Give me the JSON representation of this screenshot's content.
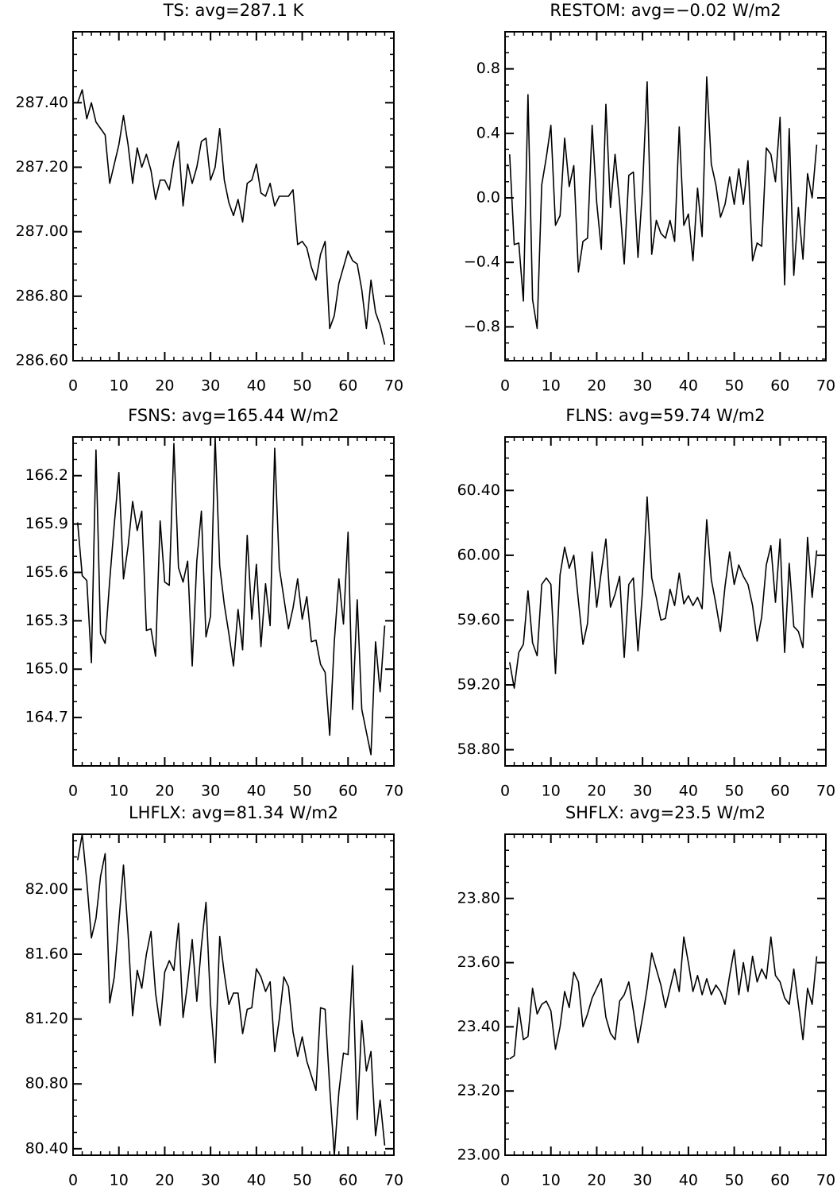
{
  "chart_data": [
    {
      "type": "line",
      "title": "TS: avg=287.1 K",
      "color": "#000000",
      "x": [
        1,
        2,
        3,
        4,
        5,
        6,
        7,
        8,
        9,
        10,
        11,
        12,
        13,
        14,
        15,
        16,
        17,
        18,
        19,
        20,
        21,
        22,
        23,
        24,
        25,
        26,
        27,
        28,
        29,
        30,
        31,
        32,
        33,
        34,
        35,
        36,
        37,
        38,
        39,
        40,
        41,
        42,
        43,
        44,
        45,
        46,
        47,
        48,
        49,
        50,
        51,
        52,
        53,
        54,
        55,
        56,
        57,
        58,
        59,
        60,
        61,
        62,
        63,
        64,
        65,
        66,
        67,
        68
      ],
      "values": [
        287.4,
        287.44,
        287.35,
        287.4,
        287.34,
        287.32,
        287.3,
        287.15,
        287.21,
        287.27,
        287.36,
        287.27,
        287.15,
        287.26,
        287.2,
        287.24,
        287.19,
        287.1,
        287.16,
        287.16,
        287.13,
        287.22,
        287.28,
        287.08,
        287.21,
        287.15,
        287.2,
        287.28,
        287.29,
        287.16,
        287.2,
        287.32,
        287.16,
        287.09,
        287.05,
        287.1,
        287.03,
        287.15,
        287.16,
        287.21,
        287.12,
        287.11,
        287.15,
        287.08,
        287.11,
        287.11,
        287.11,
        287.13,
        286.96,
        286.97,
        286.95,
        286.89,
        286.85,
        286.93,
        286.97,
        286.7,
        286.74,
        286.84,
        286.89,
        286.94,
        286.91,
        286.9,
        286.82,
        286.7,
        286.85,
        286.75,
        286.71,
        286.65
      ],
      "xlim": [
        0,
        70
      ],
      "xticks": [
        0,
        10,
        20,
        30,
        40,
        50,
        60,
        70
      ],
      "ylim": [
        286.6,
        287.62
      ],
      "yticks": [
        {
          "value": 286.6,
          "label": "286.60"
        },
        {
          "value": 286.8,
          "label": "286.80"
        },
        {
          "value": 287.0,
          "label": "287.00"
        },
        {
          "value": 287.2,
          "label": "287.20"
        },
        {
          "value": 287.4,
          "label": "287.40"
        }
      ]
    },
    {
      "type": "line",
      "title": "RESTOM: avg=−0.02 W/m2",
      "color": "#000000",
      "x": [
        1,
        2,
        3,
        4,
        5,
        6,
        7,
        8,
        9,
        10,
        11,
        12,
        13,
        14,
        15,
        16,
        17,
        18,
        19,
        20,
        21,
        22,
        23,
        24,
        25,
        26,
        27,
        28,
        29,
        30,
        31,
        32,
        33,
        34,
        35,
        36,
        37,
        38,
        39,
        40,
        41,
        42,
        43,
        44,
        45,
        46,
        47,
        48,
        49,
        50,
        51,
        52,
        53,
        54,
        55,
        56,
        57,
        58,
        59,
        60,
        61,
        62,
        63,
        64,
        65,
        66,
        67,
        68
      ],
      "values": [
        0.27,
        -0.29,
        -0.28,
        -0.64,
        0.64,
        -0.63,
        -0.81,
        0.08,
        0.25,
        0.45,
        -0.17,
        -0.11,
        0.37,
        0.07,
        0.2,
        -0.46,
        -0.27,
        -0.25,
        0.45,
        -0.03,
        -0.32,
        0.58,
        -0.06,
        0.27,
        -0.03,
        -0.41,
        0.14,
        0.16,
        -0.37,
        0.06,
        0.72,
        -0.35,
        -0.14,
        -0.22,
        -0.25,
        -0.14,
        -0.27,
        0.44,
        -0.17,
        -0.1,
        -0.39,
        0.06,
        -0.24,
        0.75,
        0.21,
        0.08,
        -0.12,
        -0.04,
        0.13,
        -0.04,
        0.18,
        -0.04,
        0.23,
        -0.39,
        -0.28,
        -0.3,
        0.31,
        0.27,
        0.1,
        0.5,
        -0.54,
        0.43,
        -0.48,
        -0.06,
        -0.38,
        0.15,
        0.0,
        0.33
      ],
      "xlim": [
        0,
        70
      ],
      "xticks": [
        0,
        10,
        20,
        30,
        40,
        50,
        60,
        70
      ],
      "ylim": [
        -1.01,
        1.03
      ],
      "yticks": [
        {
          "value": -0.8,
          "label": "−0.8"
        },
        {
          "value": -0.4,
          "label": "−0.4"
        },
        {
          "value": 0,
          "label": "0.0"
        },
        0.4,
        0.8
      ]
    },
    {
      "type": "line",
      "title": "FSNS: avg=165.44 W/m2",
      "color": "#000000",
      "x": [
        1,
        2,
        3,
        4,
        5,
        6,
        7,
        8,
        9,
        10,
        11,
        12,
        13,
        14,
        15,
        16,
        17,
        18,
        19,
        20,
        21,
        22,
        23,
        24,
        25,
        26,
        27,
        28,
        29,
        30,
        31,
        32,
        33,
        34,
        35,
        36,
        37,
        38,
        39,
        40,
        41,
        42,
        43,
        44,
        45,
        46,
        47,
        48,
        49,
        50,
        51,
        52,
        53,
        54,
        55,
        56,
        57,
        58,
        59,
        60,
        61,
        62,
        63,
        64,
        65,
        66,
        67,
        68
      ],
      "values": [
        165.91,
        165.58,
        165.55,
        165.04,
        166.36,
        165.22,
        165.16,
        165.55,
        165.9,
        166.22,
        165.56,
        165.76,
        166.04,
        165.86,
        165.98,
        165.24,
        165.25,
        165.08,
        165.92,
        165.54,
        165.52,
        166.4,
        165.63,
        165.54,
        165.67,
        165.02,
        165.67,
        165.98,
        165.2,
        165.33,
        166.44,
        165.64,
        165.4,
        165.22,
        165.02,
        165.37,
        165.12,
        165.83,
        165.31,
        165.65,
        165.14,
        165.53,
        165.27,
        166.37,
        165.63,
        165.44,
        165.25,
        165.38,
        165.56,
        165.31,
        165.45,
        165.17,
        165.18,
        165.03,
        164.98,
        164.59,
        165.17,
        165.56,
        165.28,
        165.85,
        164.75,
        165.43,
        164.75,
        164.61,
        164.47,
        165.17,
        164.86,
        165.27
      ],
      "xlim": [
        0,
        70
      ],
      "xticks": [
        0,
        10,
        20,
        30,
        40,
        50,
        60,
        70
      ],
      "ylim": [
        164.4,
        166.44
      ],
      "yticks": [
        164.7,
        {
          "value": 165.0,
          "label": "165.0"
        },
        165.3,
        165.6,
        165.9,
        166.2
      ]
    },
    {
      "type": "line",
      "title": "FLNS: avg=59.74 W/m2",
      "color": "#000000",
      "x": [
        1,
        2,
        3,
        4,
        5,
        6,
        7,
        8,
        9,
        10,
        11,
        12,
        13,
        14,
        15,
        16,
        17,
        18,
        19,
        20,
        21,
        22,
        23,
        24,
        25,
        26,
        27,
        28,
        29,
        30,
        31,
        32,
        33,
        34,
        35,
        36,
        37,
        38,
        39,
        40,
        41,
        42,
        43,
        44,
        45,
        46,
        47,
        48,
        49,
        50,
        51,
        52,
        53,
        54,
        55,
        56,
        57,
        58,
        59,
        60,
        61,
        62,
        63,
        64,
        65,
        66,
        67,
        68
      ],
      "values": [
        59.34,
        59.18,
        59.4,
        59.45,
        59.78,
        59.46,
        59.38,
        59.82,
        59.86,
        59.82,
        59.27,
        59.88,
        60.05,
        59.92,
        60.0,
        59.72,
        59.45,
        59.58,
        60.02,
        59.68,
        59.9,
        60.1,
        59.68,
        59.76,
        59.87,
        59.37,
        59.82,
        59.86,
        59.41,
        59.78,
        60.36,
        59.86,
        59.74,
        59.6,
        59.61,
        59.79,
        59.69,
        59.89,
        59.7,
        59.75,
        59.69,
        59.74,
        59.67,
        60.22,
        59.85,
        59.7,
        59.53,
        59.81,
        60.02,
        59.82,
        59.94,
        59.87,
        59.82,
        59.69,
        59.47,
        59.62,
        59.94,
        60.06,
        59.71,
        60.1,
        59.4,
        59.95,
        59.56,
        59.53,
        59.43,
        60.11,
        59.74,
        60.03
      ],
      "xlim": [
        0,
        70
      ],
      "xticks": [
        0,
        10,
        20,
        30,
        40,
        50,
        60,
        70
      ],
      "ylim": [
        58.7,
        60.73
      ],
      "yticks": [
        {
          "value": 58.8,
          "label": "58.80"
        },
        {
          "value": 59.2,
          "label": "59.20"
        },
        {
          "value": 59.6,
          "label": "59.60"
        },
        {
          "value": 60.0,
          "label": "60.00"
        },
        {
          "value": 60.4,
          "label": "60.40"
        }
      ]
    },
    {
      "type": "line",
      "title": "LHFLX: avg=81.34 W/m2",
      "color": "#000000",
      "x": [
        1,
        2,
        3,
        4,
        5,
        6,
        7,
        8,
        9,
        10,
        11,
        12,
        13,
        14,
        15,
        16,
        17,
        18,
        19,
        20,
        21,
        22,
        23,
        24,
        25,
        26,
        27,
        28,
        29,
        30,
        31,
        32,
        33,
        34,
        35,
        36,
        37,
        38,
        39,
        40,
        41,
        42,
        43,
        44,
        45,
        46,
        47,
        48,
        49,
        50,
        51,
        52,
        53,
        54,
        55,
        56,
        57,
        58,
        59,
        60,
        61,
        62,
        63,
        64,
        65,
        66,
        67,
        68
      ],
      "values": [
        82.18,
        82.34,
        82.05,
        81.7,
        81.82,
        82.08,
        82.22,
        81.3,
        81.46,
        81.8,
        82.15,
        81.73,
        81.22,
        81.5,
        81.39,
        81.6,
        81.74,
        81.36,
        81.16,
        81.49,
        81.56,
        81.5,
        81.79,
        81.21,
        81.42,
        81.69,
        81.31,
        81.65,
        81.92,
        81.29,
        80.93,
        81.71,
        81.48,
        81.29,
        81.36,
        81.36,
        81.11,
        81.26,
        81.27,
        81.51,
        81.46,
        81.37,
        81.43,
        81.0,
        81.2,
        81.46,
        81.4,
        81.12,
        80.97,
        81.09,
        80.94,
        80.85,
        80.76,
        81.27,
        81.26,
        80.78,
        80.36,
        80.75,
        80.99,
        80.98,
        81.53,
        80.58,
        81.19,
        80.88,
        81.0,
        80.48,
        80.7,
        80.42
      ],
      "xlim": [
        0,
        70
      ],
      "xticks": [
        0,
        10,
        20,
        30,
        40,
        50,
        60,
        70
      ],
      "ylim": [
        80.36,
        82.34
      ],
      "yticks": [
        {
          "value": 80.4,
          "label": "80.40"
        },
        {
          "value": 80.8,
          "label": "80.80"
        },
        {
          "value": 81.2,
          "label": "81.20"
        },
        {
          "value": 81.6,
          "label": "81.60"
        },
        {
          "value": 82.0,
          "label": "82.00"
        }
      ]
    },
    {
      "type": "line",
      "title": "SHFLX: avg=23.5 W/m2",
      "color": "#000000",
      "x": [
        1,
        2,
        3,
        4,
        5,
        6,
        7,
        8,
        9,
        10,
        11,
        12,
        13,
        14,
        15,
        16,
        17,
        18,
        19,
        20,
        21,
        22,
        23,
        24,
        25,
        26,
        27,
        28,
        29,
        30,
        31,
        32,
        33,
        34,
        35,
        36,
        37,
        38,
        39,
        40,
        41,
        42,
        43,
        44,
        45,
        46,
        47,
        48,
        49,
        50,
        51,
        52,
        53,
        54,
        55,
        56,
        57,
        58,
        59,
        60,
        61,
        62,
        63,
        64,
        65,
        66,
        67,
        68
      ],
      "values": [
        23.3,
        23.31,
        23.46,
        23.36,
        23.37,
        23.52,
        23.44,
        23.47,
        23.48,
        23.45,
        23.33,
        23.4,
        23.51,
        23.46,
        23.57,
        23.54,
        23.4,
        23.44,
        23.49,
        23.52,
        23.55,
        23.43,
        23.38,
        23.36,
        23.48,
        23.5,
        23.54,
        23.45,
        23.35,
        23.43,
        23.52,
        23.63,
        23.58,
        23.53,
        23.46,
        23.52,
        23.58,
        23.51,
        23.68,
        23.6,
        23.51,
        23.56,
        23.5,
        23.55,
        23.5,
        23.53,
        23.51,
        23.47,
        23.56,
        23.64,
        23.5,
        23.6,
        23.51,
        23.62,
        23.54,
        23.58,
        23.55,
        23.68,
        23.56,
        23.54,
        23.49,
        23.47,
        23.58,
        23.47,
        23.36,
        23.52,
        23.47,
        23.62
      ],
      "xlim": [
        0,
        70
      ],
      "xticks": [
        0,
        10,
        20,
        30,
        40,
        50,
        60,
        70
      ],
      "ylim": [
        23.0,
        24.0
      ],
      "yticks": [
        {
          "value": 23.0,
          "label": "23.00"
        },
        {
          "value": 23.2,
          "label": "23.20"
        },
        {
          "value": 23.4,
          "label": "23.40"
        },
        {
          "value": 23.6,
          "label": "23.60"
        },
        {
          "value": 23.8,
          "label": "23.80"
        }
      ]
    }
  ]
}
